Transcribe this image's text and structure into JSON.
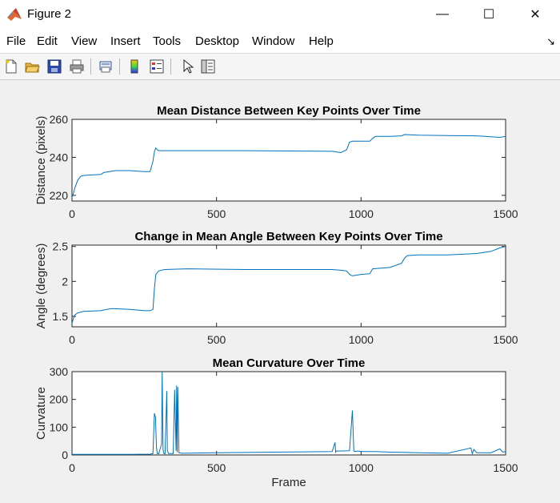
{
  "window": {
    "title": "Figure 2",
    "minimize_glyph": "—",
    "maximize_glyph": "☐",
    "close_glyph": "✕"
  },
  "menu": [
    "File",
    "Edit",
    "View",
    "Insert",
    "Tools",
    "Desktop",
    "Window",
    "Help"
  ],
  "toolbar": {
    "icons": [
      "new-figure-icon",
      "open-file-icon",
      "save-icon",
      "print-icon",
      "print-preview-icon",
      "colorbar-icon",
      "legend-icon",
      "edit-plot-arrow-icon",
      "property-inspector-icon"
    ]
  },
  "colors": {
    "line": "#0072bd",
    "axes": "#262626"
  },
  "chart_data": [
    {
      "type": "line",
      "title": "Mean Distance Between Key Points Over Time",
      "xlabel": "",
      "ylabel": "Distance (pixels)",
      "xlim": [
        0,
        1500
      ],
      "ylim": [
        217,
        260
      ],
      "xticks": [
        0,
        500,
        1000,
        1500
      ],
      "yticks": [
        220,
        240,
        260
      ],
      "x": [
        0,
        5,
        10,
        15,
        20,
        30,
        40,
        100,
        110,
        130,
        150,
        200,
        250,
        270,
        280,
        285,
        290,
        295,
        300,
        400,
        600,
        800,
        900,
        930,
        950,
        960,
        970,
        1000,
        1030,
        1040,
        1050,
        1100,
        1140,
        1150,
        1200,
        1300,
        1400,
        1450,
        1480,
        1500
      ],
      "y": [
        219,
        221,
        224,
        226,
        228,
        230,
        230.5,
        231,
        232,
        232.5,
        233,
        233,
        232.5,
        232.5,
        238,
        243,
        245,
        244,
        243.5,
        243.5,
        243.5,
        243.3,
        243.2,
        242.5,
        244,
        248,
        248.5,
        248.5,
        248.5,
        250,
        251,
        251,
        251.3,
        252,
        251.7,
        251.5,
        251.3,
        250.8,
        250.5,
        251
      ]
    },
    {
      "type": "line",
      "title": "Change in Mean Angle Between Key Points Over Time",
      "xlabel": "",
      "ylabel": "Angle (degrees)",
      "xlim": [
        0,
        1500
      ],
      "ylim": [
        1.35,
        2.52
      ],
      "xticks": [
        0,
        500,
        1000,
        1500
      ],
      "yticks": [
        1.5,
        2,
        2.5
      ],
      "yticklabels": [
        "1.5",
        "2",
        "2.5"
      ],
      "x": [
        0,
        5,
        10,
        20,
        40,
        100,
        120,
        140,
        200,
        250,
        270,
        280,
        285,
        290,
        300,
        320,
        400,
        600,
        800,
        900,
        930,
        950,
        960,
        970,
        1000,
        1030,
        1040,
        1100,
        1140,
        1150,
        1160,
        1200,
        1300,
        1400,
        1450,
        1480,
        1500
      ],
      "y": [
        1.4,
        1.47,
        1.52,
        1.55,
        1.57,
        1.58,
        1.6,
        1.61,
        1.6,
        1.58,
        1.58,
        1.6,
        1.9,
        2.1,
        2.15,
        2.17,
        2.18,
        2.17,
        2.17,
        2.17,
        2.16,
        2.15,
        2.1,
        2.08,
        2.1,
        2.11,
        2.18,
        2.2,
        2.26,
        2.33,
        2.37,
        2.38,
        2.38,
        2.4,
        2.43,
        2.48,
        2.5
      ]
    },
    {
      "type": "line",
      "title": "Mean Curvature Over Time",
      "xlabel": "Frame",
      "ylabel": "Curvature",
      "xlim": [
        0,
        1500
      ],
      "ylim": [
        0,
        300
      ],
      "xticks": [
        0,
        500,
        1000,
        1500
      ],
      "yticks": [
        0,
        100,
        200,
        300
      ],
      "x": [
        0,
        100,
        200,
        270,
        280,
        285,
        289,
        292,
        295,
        300,
        310,
        312,
        315,
        318,
        322,
        328,
        330,
        334,
        340,
        350,
        355,
        360,
        362,
        364,
        366,
        370,
        380,
        500,
        700,
        900,
        910,
        912,
        914,
        920,
        960,
        970,
        975,
        978,
        982,
        990,
        1000,
        1050,
        1100,
        1200,
        1300,
        1380,
        1385,
        1390,
        1400,
        1450,
        1480,
        1490,
        1500
      ],
      "y": [
        2,
        2,
        2,
        3,
        5,
        150,
        135,
        30,
        5,
        4,
        40,
        300,
        20,
        5,
        4,
        230,
        15,
        5,
        5,
        5,
        235,
        15,
        250,
        10,
        245,
        8,
        6,
        8,
        10,
        12,
        45,
        10,
        14,
        14,
        15,
        160,
        14,
        12,
        13,
        14,
        12,
        12,
        10,
        8,
        6,
        25,
        5,
        20,
        8,
        8,
        22,
        10,
        12
      ]
    }
  ]
}
